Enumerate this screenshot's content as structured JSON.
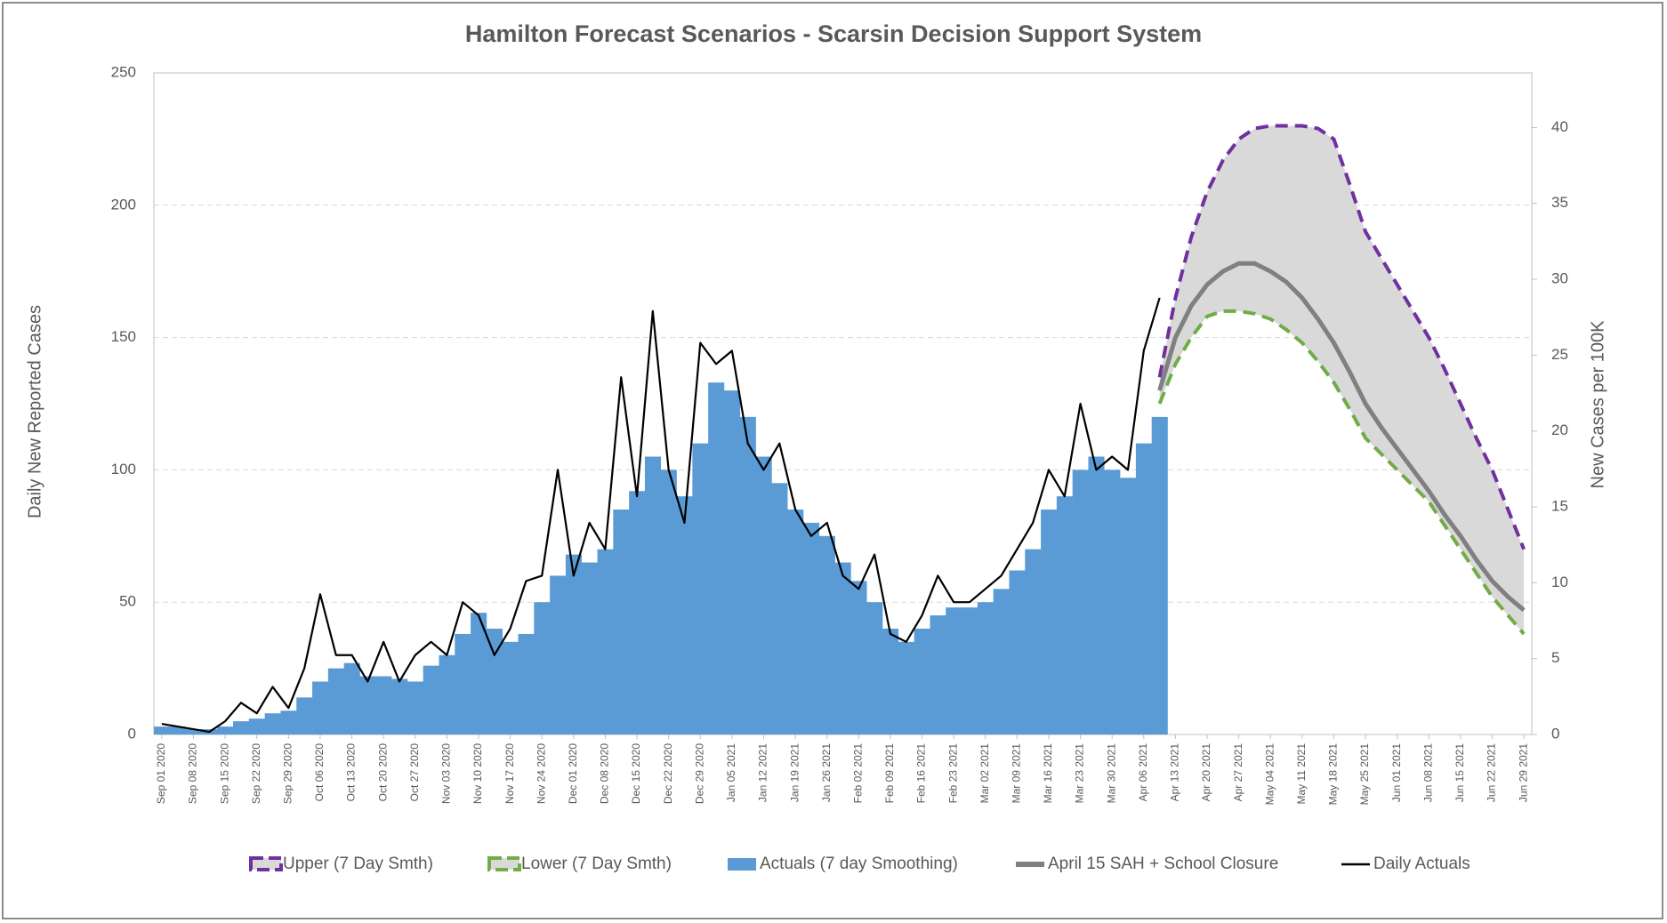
{
  "chart_data": {
    "type": "combo",
    "title": "Hamilton Forecast Scenarios - Scarsin Decision Support System",
    "y_label": "Daily New Reported Cases",
    "y2_label": "New Cases per 100K",
    "categories": [
      "Sep 01 2020",
      null,
      "Sep 08 2020",
      null,
      "Sep 15 2020",
      null,
      "Sep 22 2020",
      null,
      "Sep 29 2020",
      null,
      "Oct 06 2020",
      null,
      "Oct 13 2020",
      null,
      "Oct 20 2020",
      null,
      "Oct 27 2020",
      null,
      "Nov 03 2020",
      null,
      "Nov 10 2020",
      null,
      "Nov 17 2020",
      null,
      "Nov 24 2020",
      null,
      "Dec 01 2020",
      null,
      "Dec 08 2020",
      null,
      "Dec 15 2020",
      null,
      "Dec 22 2020",
      null,
      "Dec 29 2020",
      null,
      "Jan 05 2021",
      null,
      "Jan 12 2021",
      null,
      "Jan 19 2021",
      null,
      "Jan 26 2021",
      null,
      "Feb 02 2021",
      null,
      "Feb 09 2021",
      null,
      "Feb 16 2021",
      null,
      "Feb 23 2021",
      null,
      "Mar 02 2021",
      null,
      "Mar 09 2021",
      null,
      "Mar 16 2021",
      null,
      "Mar 23 2021",
      null,
      "Mar 30 2021",
      null,
      "Apr 06 2021",
      null,
      "Apr 13 2021",
      null,
      "Apr 20 2021",
      null,
      "Apr 27 2021",
      null,
      "May 04 2021",
      null,
      "May 11 2021",
      null,
      "May 18 2021",
      null,
      "May 25 2021",
      null,
      "Jun 01 2021",
      null,
      "Jun 08 2021",
      null,
      "Jun 15 2021",
      null,
      "Jun 22 2021",
      null,
      "Jun 29 2021"
    ],
    "series": [
      {
        "name": "Upper (7 Day Smth)",
        "color": "#7030a0",
        "style": "dashed",
        "values": [
          null,
          null,
          null,
          null,
          null,
          null,
          null,
          null,
          null,
          null,
          null,
          null,
          null,
          null,
          null,
          null,
          null,
          null,
          null,
          null,
          null,
          null,
          null,
          null,
          null,
          null,
          null,
          null,
          null,
          null,
          null,
          null,
          null,
          null,
          null,
          null,
          null,
          null,
          null,
          null,
          null,
          null,
          null,
          null,
          null,
          null,
          null,
          null,
          null,
          null,
          null,
          null,
          null,
          null,
          null,
          null,
          null,
          null,
          null,
          null,
          null,
          null,
          null,
          135,
          165,
          188,
          205,
          217,
          225,
          229,
          230,
          230,
          230,
          229,
          225,
          208,
          190,
          180,
          170,
          160,
          150,
          138,
          125,
          112,
          100,
          85,
          70
        ]
      },
      {
        "name": "Lower (7 Day Smth)",
        "color": "#70ad47",
        "style": "dashed",
        "values": [
          null,
          null,
          null,
          null,
          null,
          null,
          null,
          null,
          null,
          null,
          null,
          null,
          null,
          null,
          null,
          null,
          null,
          null,
          null,
          null,
          null,
          null,
          null,
          null,
          null,
          null,
          null,
          null,
          null,
          null,
          null,
          null,
          null,
          null,
          null,
          null,
          null,
          null,
          null,
          null,
          null,
          null,
          null,
          null,
          null,
          null,
          null,
          null,
          null,
          null,
          null,
          null,
          null,
          null,
          null,
          null,
          null,
          null,
          null,
          null,
          null,
          null,
          null,
          125,
          140,
          150,
          158,
          160,
          160,
          159,
          157,
          153,
          148,
          141,
          133,
          123,
          112,
          106,
          100,
          94,
          88,
          79,
          70,
          61,
          52,
          45,
          38
        ]
      },
      {
        "name": "Actuals (7 day Smoothing)",
        "color": "#5b9bd5",
        "style": "bar",
        "values": [
          3,
          3,
          2,
          2,
          3,
          5,
          6,
          8,
          9,
          14,
          20,
          25,
          27,
          22,
          22,
          21,
          20,
          26,
          30,
          38,
          46,
          40,
          35,
          38,
          50,
          60,
          68,
          65,
          70,
          85,
          92,
          105,
          100,
          90,
          110,
          133,
          130,
          120,
          105,
          95,
          85,
          80,
          75,
          65,
          58,
          50,
          40,
          35,
          40,
          45,
          48,
          48,
          50,
          55,
          62,
          70,
          85,
          90,
          100,
          105,
          100,
          97,
          110,
          120,
          null,
          null,
          null,
          null,
          null,
          null,
          null,
          null,
          null,
          null,
          null,
          null,
          null,
          null,
          null,
          null,
          null,
          null,
          null,
          null,
          null,
          null,
          null
        ]
      },
      {
        "name": "April 15 SAH + School Closure",
        "color": "#808080",
        "style": "thick",
        "values": [
          null,
          null,
          null,
          null,
          null,
          null,
          null,
          null,
          null,
          null,
          null,
          null,
          null,
          null,
          null,
          null,
          null,
          null,
          null,
          null,
          null,
          null,
          null,
          null,
          null,
          null,
          null,
          null,
          null,
          null,
          null,
          null,
          null,
          null,
          null,
          null,
          null,
          null,
          null,
          null,
          null,
          null,
          null,
          null,
          null,
          null,
          null,
          null,
          null,
          null,
          null,
          null,
          null,
          null,
          null,
          null,
          null,
          null,
          null,
          null,
          null,
          null,
          null,
          130,
          150,
          162,
          170,
          175,
          178,
          178,
          175,
          171,
          165,
          157,
          148,
          137,
          125,
          116,
          108,
          100,
          92,
          83,
          75,
          66,
          58,
          52,
          47
        ]
      },
      {
        "name": "Daily Actuals",
        "color": "#000000",
        "style": "line",
        "values": [
          4,
          3,
          2,
          1,
          5,
          12,
          8,
          18,
          10,
          25,
          53,
          30,
          30,
          20,
          35,
          20,
          30,
          35,
          30,
          50,
          45,
          30,
          40,
          58,
          60,
          100,
          60,
          80,
          70,
          135,
          90,
          160,
          100,
          80,
          148,
          140,
          145,
          110,
          100,
          110,
          85,
          75,
          80,
          60,
          55,
          68,
          38,
          35,
          45,
          60,
          50,
          50,
          55,
          60,
          70,
          80,
          100,
          90,
          125,
          100,
          105,
          100,
          145,
          165,
          null,
          null,
          null,
          null,
          null,
          null,
          null,
          null,
          null,
          null,
          null,
          null,
          null,
          null,
          null,
          null,
          null,
          null,
          null,
          null,
          null,
          null,
          null
        ]
      }
    ],
    "band_color": "#d9d9d9",
    "ylim": [
      0,
      250
    ],
    "yticks": [
      0,
      50,
      100,
      150,
      200,
      250
    ],
    "y2lim": [
      0,
      43.6
    ],
    "y2ticks": [
      0,
      5,
      10,
      15,
      20,
      25,
      30,
      35,
      40
    ],
    "grid": true
  }
}
